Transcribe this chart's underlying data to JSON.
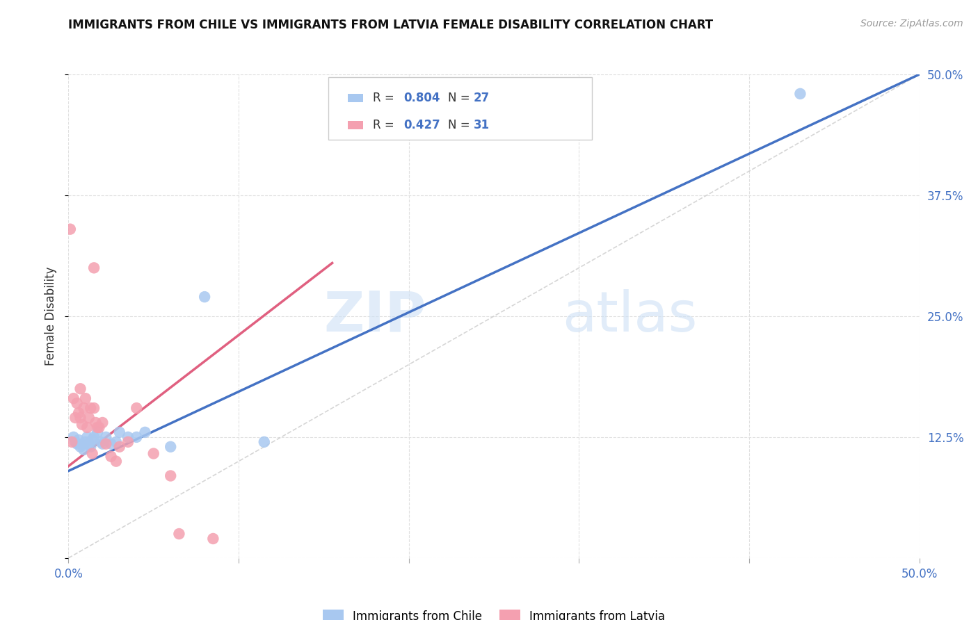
{
  "title": "IMMIGRANTS FROM CHILE VS IMMIGRANTS FROM LATVIA FEMALE DISABILITY CORRELATION CHART",
  "source": "Source: ZipAtlas.com",
  "ylabel": "Female Disability",
  "xlim": [
    0.0,
    0.5
  ],
  "ylim": [
    0.0,
    0.5
  ],
  "chile_color": "#a8c8f0",
  "latvia_color": "#f4a0b0",
  "chile_line_color": "#4472c4",
  "latvia_line_color": "#e06080",
  "chile_R": 0.804,
  "chile_N": 27,
  "latvia_R": 0.427,
  "latvia_N": 31,
  "chile_line_x0": 0.0,
  "chile_line_y0": 0.09,
  "chile_line_x1": 0.5,
  "chile_line_y1": 0.5,
  "latvia_line_x0": 0.0,
  "latvia_line_y0": 0.095,
  "latvia_line_x1": 0.155,
  "latvia_line_y1": 0.305,
  "chile_scatter_x": [
    0.003,
    0.004,
    0.005,
    0.006,
    0.007,
    0.008,
    0.009,
    0.01,
    0.011,
    0.012,
    0.013,
    0.014,
    0.015,
    0.017,
    0.019,
    0.02,
    0.022,
    0.025,
    0.028,
    0.03,
    0.035,
    0.04,
    0.045,
    0.06,
    0.08,
    0.115,
    0.43
  ],
  "chile_scatter_y": [
    0.125,
    0.12,
    0.118,
    0.122,
    0.115,
    0.118,
    0.112,
    0.12,
    0.125,
    0.118,
    0.115,
    0.122,
    0.125,
    0.13,
    0.12,
    0.118,
    0.125,
    0.118,
    0.12,
    0.13,
    0.125,
    0.125,
    0.13,
    0.115,
    0.27,
    0.12,
    0.48
  ],
  "latvia_scatter_x": [
    0.001,
    0.002,
    0.003,
    0.004,
    0.005,
    0.006,
    0.007,
    0.007,
    0.008,
    0.009,
    0.01,
    0.011,
    0.012,
    0.013,
    0.014,
    0.015,
    0.016,
    0.017,
    0.018,
    0.02,
    0.022,
    0.025,
    0.028,
    0.03,
    0.035,
    0.04,
    0.05,
    0.06,
    0.065,
    0.015,
    0.085
  ],
  "latvia_scatter_y": [
    0.34,
    0.12,
    0.165,
    0.145,
    0.16,
    0.15,
    0.145,
    0.175,
    0.138,
    0.155,
    0.165,
    0.135,
    0.145,
    0.155,
    0.108,
    0.3,
    0.14,
    0.135,
    0.135,
    0.14,
    0.118,
    0.105,
    0.1,
    0.115,
    0.12,
    0.155,
    0.108,
    0.085,
    0.025,
    0.155,
    0.02
  ],
  "watermark_zip": "ZIP",
  "watermark_atlas": "atlas",
  "grid_color": "#e0e0e0",
  "background_color": "#ffffff",
  "diag_line_color": "#cccccc",
  "tick_color": "#4472c4",
  "label_color": "#333333"
}
